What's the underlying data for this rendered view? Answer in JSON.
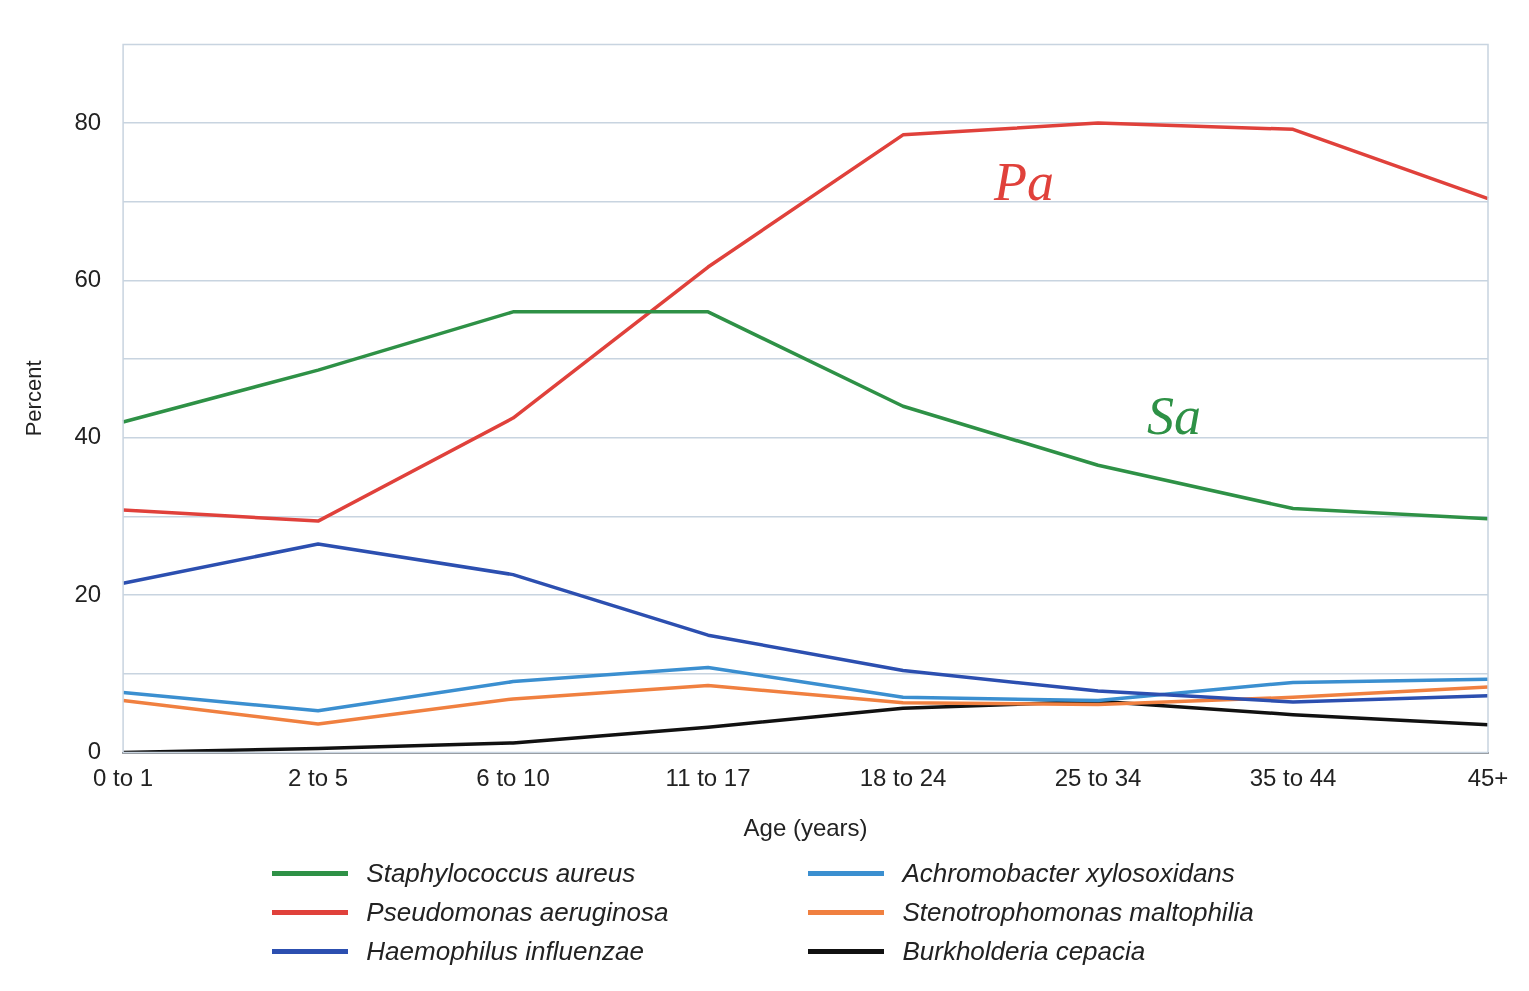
{
  "chart_data": {
    "type": "line",
    "xlabel": "Age (years)",
    "ylabel": "Percent",
    "categories": [
      "0 to 1",
      "2 to 5",
      "6 to 10",
      "11 to 17",
      "18 to 24",
      "25 to 34",
      "35 to 44",
      "45+"
    ],
    "ylim": [
      0,
      90
    ],
    "yticks": [
      0,
      {
        "value": 10,
        "label": null
      },
      20,
      {
        "value": 30,
        "label": null
      },
      40,
      {
        "value": 50,
        "label": null
      },
      60,
      {
        "value": 70,
        "label": null
      },
      80
    ],
    "grid": "y",
    "legend": "bottom",
    "marker": "none",
    "line_style": "solid",
    "series": [
      {
        "name": "Staphylococcus aureus",
        "color": "#2e9146",
        "values": [
          42,
          48.6,
          56,
          56,
          44,
          36.5,
          31,
          29.7
        ]
      },
      {
        "name": "Pseudomonas aeruginosa",
        "color": "#e0413b",
        "values": [
          30.8,
          29.4,
          42.5,
          61.7,
          78.5,
          80,
          79.2,
          70.4
        ]
      },
      {
        "name": "Haemophilus influenzae",
        "color": "#2c4fb0",
        "values": [
          21.5,
          26.5,
          22.6,
          14.9,
          10.4,
          7.8,
          6.4,
          7.2
        ]
      },
      {
        "name": "Achromobacter xylosoxidans",
        "color": "#3b8fd0",
        "values": [
          7.6,
          5.3,
          9,
          10.8,
          7,
          6.6,
          8.9,
          9.3
        ]
      },
      {
        "name": "Stenotrophomonas maltophilia",
        "color": "#f08040",
        "values": [
          6.6,
          3.6,
          6.8,
          8.5,
          6.3,
          6.1,
          7,
          8.3
        ]
      },
      {
        "name": "Burkholderia cepacia",
        "color": "#111111",
        "values": [
          0,
          0.5,
          1.2,
          3.2,
          5.6,
          6.5,
          4.8,
          3.5
        ]
      }
    ],
    "annotations": [
      "Pa",
      "Sa"
    ]
  }
}
